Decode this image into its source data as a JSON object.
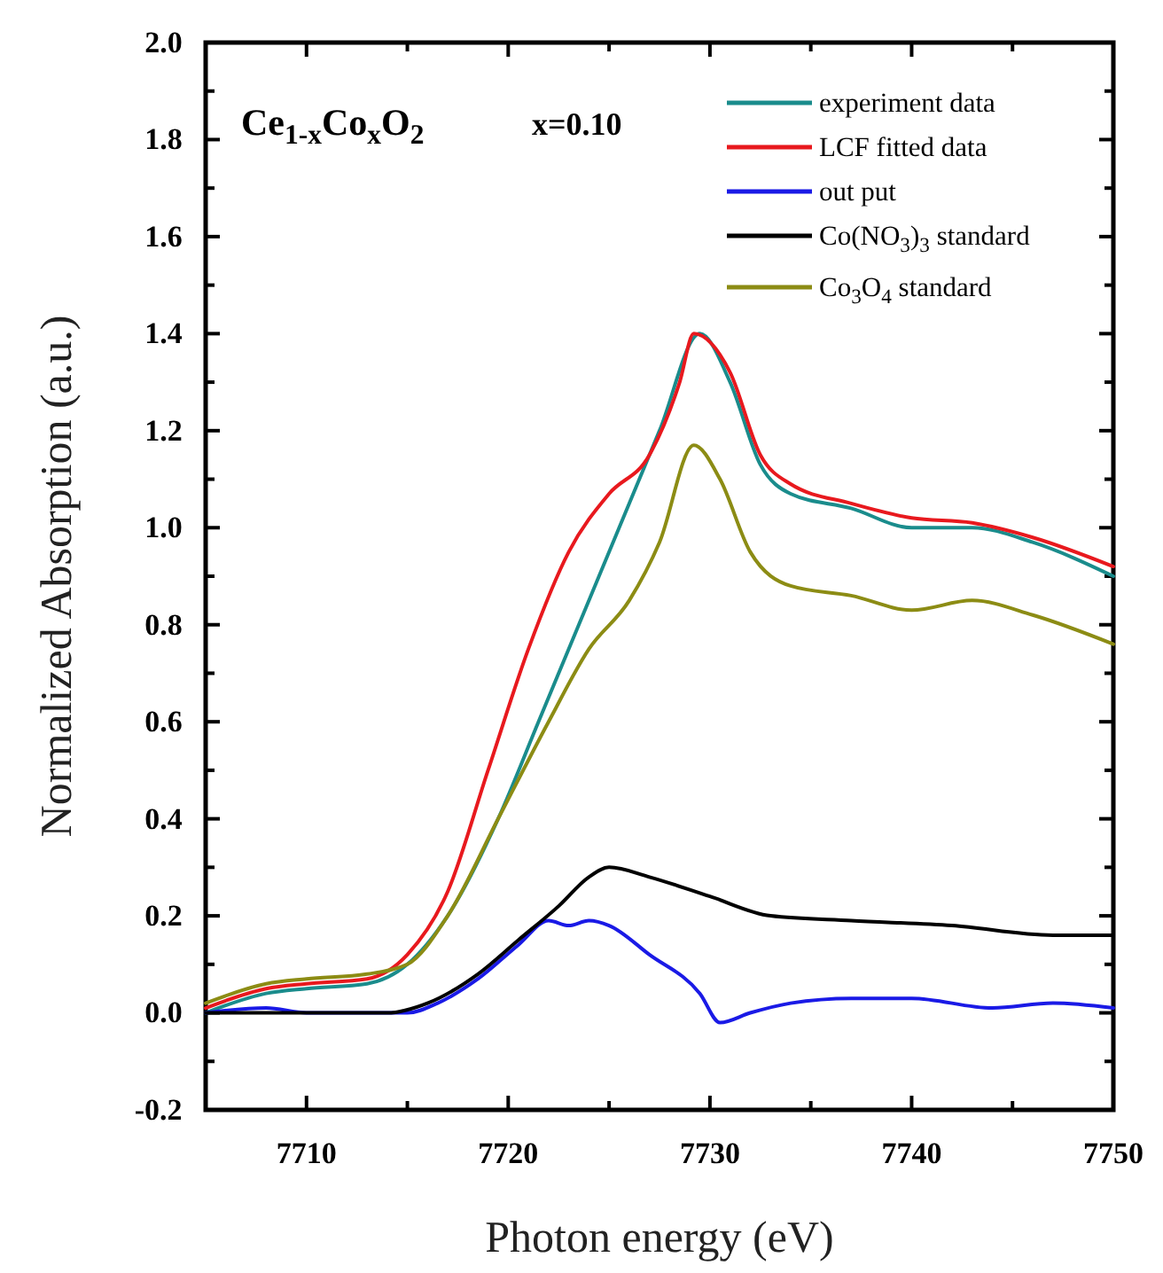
{
  "chart_data": {
    "type": "line",
    "xlabel": "Photon energy (eV)",
    "ylabel": "Normalized Absorption (a.u.)",
    "annotations": [
      "Ce$_{1-x}$Co$_{x}$O$_{2}$",
      "x=0.10"
    ],
    "xlim": [
      7705,
      7750
    ],
    "ylim": [
      -0.2,
      2.0
    ],
    "xticks": [
      {
        "value": 7705,
        "label": null
      },
      7710,
      {
        "value": 7715,
        "label": null
      },
      7720,
      {
        "value": 7725,
        "label": null
      },
      7730,
      {
        "value": 7735,
        "label": null
      },
      7740,
      {
        "value": 7745,
        "label": null
      },
      7750
    ],
    "yticks": [
      -0.2,
      {
        "value": -0.1,
        "label": null
      },
      {
        "value": 0,
        "label": "0.0"
      },
      {
        "value": 0.1,
        "label": null
      },
      0.2,
      {
        "value": 0.3,
        "label": null
      },
      0.4,
      {
        "value": 0.5,
        "label": null
      },
      0.6,
      {
        "value": 0.7,
        "label": null
      },
      0.8,
      {
        "value": 0.9,
        "label": null
      },
      {
        "value": 1,
        "label": "1.0"
      },
      {
        "value": 1.1,
        "label": null
      },
      1.2,
      {
        "value": 1.3,
        "label": null
      },
      1.4,
      {
        "value": 1.5,
        "label": null
      },
      1.6,
      {
        "value": 1.7,
        "label": null
      },
      1.8,
      {
        "value": 1.9,
        "label": null
      },
      {
        "value": 2,
        "label": "2.0"
      }
    ],
    "legend": "top right",
    "grid": false,
    "line_style": "solid",
    "marker": "none",
    "series": [
      {
        "name": "experiment data",
        "color": "#1a8c8c",
        "x": [
          7705,
          7708,
          7710,
          7713,
          7715,
          7717,
          7719.5,
          7721.5,
          7723.5,
          7725.5,
          7727.5,
          7729.5,
          7731,
          7732.5,
          7734,
          7737,
          7740,
          7743,
          7746,
          7750
        ],
        "values": [
          0.0,
          0.04,
          0.05,
          0.06,
          0.1,
          0.2,
          0.4,
          0.6,
          0.8,
          1.0,
          1.2,
          1.4,
          1.3,
          1.13,
          1.07,
          1.04,
          1.0,
          1.0,
          0.97,
          0.9
        ]
      },
      {
        "name": "LCF fitted data",
        "color": "#e8191e",
        "x": [
          7705,
          7708,
          7710,
          7713,
          7715,
          7717,
          7719,
          7721,
          7723,
          7725,
          7727,
          7728.5,
          7729.2,
          7731,
          7732.5,
          7734,
          7737,
          7740,
          7743,
          7746,
          7750
        ],
        "values": [
          0.01,
          0.05,
          0.06,
          0.07,
          0.12,
          0.25,
          0.5,
          0.75,
          0.95,
          1.07,
          1.15,
          1.3,
          1.4,
          1.32,
          1.15,
          1.09,
          1.05,
          1.02,
          1.01,
          0.98,
          0.92
        ]
      },
      {
        "name": "out put",
        "color": "#1a1ae6",
        "x": [
          7705,
          7708,
          7710,
          7715,
          7716.5,
          7718.5,
          7720.5,
          7722,
          7723,
          7724,
          7725,
          7727,
          7729.5,
          7730.5,
          7732,
          7734,
          7737,
          7740,
          7744,
          7747,
          7750
        ],
        "values": [
          0.0,
          0.01,
          0.0,
          0.0,
          0.02,
          0.07,
          0.14,
          0.19,
          0.18,
          0.19,
          0.18,
          0.12,
          0.04,
          -0.02,
          0.0,
          0.02,
          0.03,
          0.03,
          0.01,
          0.02,
          0.01
        ]
      },
      {
        "name": "Co(NO$_{3}$)$_{3}$ standard",
        "color": "#000000",
        "x": [
          7705,
          7710,
          7714,
          7716,
          7718.5,
          7720.5,
          7722.5,
          7724,
          7725,
          7727,
          7730,
          7733,
          7737,
          7742,
          7747,
          7750
        ],
        "values": [
          0.0,
          0.0,
          0.0,
          0.02,
          0.08,
          0.15,
          0.22,
          0.28,
          0.3,
          0.28,
          0.24,
          0.2,
          0.19,
          0.18,
          0.16,
          0.16
        ]
      },
      {
        "name": "Co$_{3}$O$_{4}$ standard",
        "color": "#8c8c14",
        "x": [
          7705,
          7708,
          7710,
          7713,
          7715,
          7717,
          7719.5,
          7722,
          7724,
          7726,
          7727.5,
          7729.2,
          7730.5,
          7732,
          7734,
          7737,
          7740,
          7743,
          7746,
          7750
        ],
        "values": [
          0.02,
          0.06,
          0.07,
          0.08,
          0.1,
          0.2,
          0.4,
          0.6,
          0.75,
          0.85,
          0.97,
          1.17,
          1.1,
          0.95,
          0.88,
          0.86,
          0.83,
          0.85,
          0.82,
          0.76
        ]
      }
    ]
  }
}
